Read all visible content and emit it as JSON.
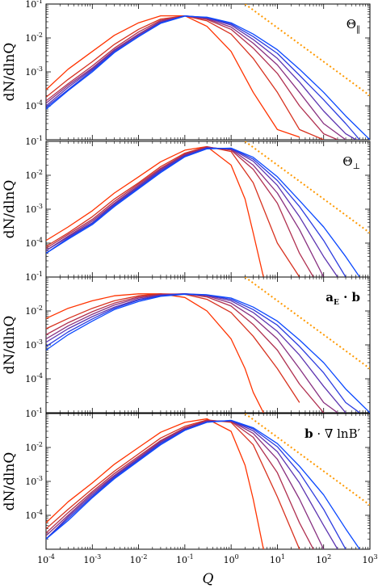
{
  "chart_data": {
    "type": "line",
    "xscale": "log",
    "yscale": "log",
    "xlim": [
      0.0001,
      1000
    ],
    "ylim": [
      1e-05,
      0.1
    ],
    "xlabel": "Q",
    "ylabel": "dN/dlnQ",
    "series_colors": [
      "#ff3300",
      "#d8321f",
      "#b03050",
      "#883080",
      "#5c34b0",
      "#2c3ce0",
      "#0a48ff"
    ],
    "guide_color": "#ff9900",
    "guide_line": {
      "x": [
        2,
        1000
      ],
      "y": [
        0.1,
        0.0002
      ]
    },
    "panels": [
      {
        "label": "Θ‖",
        "label_parts": [
          "Θ",
          "‖"
        ],
        "series": [
          {
            "x": [
              0.0001,
              0.0003,
              0.001,
              0.003,
              0.01,
              0.03,
              0.1,
              0.3,
              1,
              3,
              10,
              30
            ],
            "y": [
              0.0003,
              0.0012,
              0.004,
              0.012,
              0.028,
              0.045,
              0.045,
              0.022,
              0.004,
              0.00025,
              2e-05,
              1.2e-05
            ]
          },
          {
            "x": [
              0.0001,
              0.0003,
              0.001,
              0.003,
              0.01,
              0.03,
              0.1,
              0.3,
              1,
              3,
              10,
              30,
              100
            ],
            "y": [
              0.00018,
              0.0006,
              0.002,
              0.0065,
              0.018,
              0.036,
              0.045,
              0.032,
              0.013,
              0.0025,
              0.00025,
              2e-05,
              1e-05
            ]
          },
          {
            "x": [
              0.0001,
              0.0003,
              0.001,
              0.003,
              0.01,
              0.03,
              0.1,
              0.3,
              1,
              3,
              10,
              30,
              100,
              200
            ],
            "y": [
              0.00014,
              0.00045,
              0.0015,
              0.005,
              0.015,
              0.033,
              0.045,
              0.035,
              0.018,
              0.005,
              0.0009,
              0.0001,
              1.5e-05,
              1e-05
            ]
          },
          {
            "x": [
              0.0001,
              0.0003,
              0.001,
              0.003,
              0.01,
              0.03,
              0.1,
              0.3,
              1,
              3,
              10,
              30,
              100,
              300
            ],
            "y": [
              0.00012,
              0.0004,
              0.0013,
              0.0045,
              0.013,
              0.031,
              0.045,
              0.037,
              0.021,
              0.007,
              0.0016,
              0.00025,
              3e-05,
              1e-05
            ]
          },
          {
            "x": [
              0.0001,
              0.0003,
              0.001,
              0.003,
              0.01,
              0.03,
              0.1,
              0.3,
              1,
              3,
              10,
              30,
              100,
              300,
              500
            ],
            "y": [
              0.0001,
              0.00035,
              0.0012,
              0.0042,
              0.012,
              0.029,
              0.045,
              0.039,
              0.024,
              0.009,
              0.0025,
              0.0005,
              7e-05,
              1.5e-05,
              1e-05
            ]
          },
          {
            "x": [
              0.0001,
              0.0003,
              0.001,
              0.003,
              0.01,
              0.03,
              0.1,
              0.3,
              1,
              3,
              10,
              30,
              100,
              300,
              600
            ],
            "y": [
              9e-05,
              0.0003,
              0.0011,
              0.0039,
              0.011,
              0.028,
              0.045,
              0.04,
              0.026,
              0.011,
              0.0035,
              0.0008,
              0.00015,
              3e-05,
              1e-05
            ]
          },
          {
            "x": [
              0.0001,
              0.0003,
              0.001,
              0.003,
              0.01,
              0.03,
              0.1,
              0.3,
              1,
              3,
              10,
              30,
              100,
              300,
              1000
            ],
            "y": [
              8e-05,
              0.00028,
              0.001,
              0.0037,
              0.011,
              0.027,
              0.044,
              0.041,
              0.028,
              0.013,
              0.0045,
              0.0012,
              0.00025,
              5e-05,
              1e-05
            ]
          }
        ]
      },
      {
        "label": "Θ⊥",
        "label_parts": [
          "Θ",
          "⊥"
        ],
        "series": [
          {
            "x": [
              0.0001,
              0.0003,
              0.001,
              0.003,
              0.01,
              0.03,
              0.1,
              0.3,
              1,
              2,
              3,
              5
            ],
            "y": [
              0.00012,
              0.0003,
              0.0009,
              0.003,
              0.009,
              0.025,
              0.055,
              0.07,
              0.02,
              0.002,
              0.0002,
              1e-05
            ]
          },
          {
            "x": [
              0.0001,
              0.0003,
              0.001,
              0.003,
              0.01,
              0.03,
              0.1,
              0.3,
              1,
              3,
              10,
              30
            ],
            "y": [
              8e-05,
              0.0002,
              0.0006,
              0.002,
              0.006,
              0.018,
              0.045,
              0.07,
              0.05,
              0.006,
              0.0001,
              1e-05
            ]
          },
          {
            "x": [
              0.0001,
              0.0003,
              0.001,
              0.003,
              0.01,
              0.03,
              0.1,
              0.3,
              1,
              3,
              10,
              30,
              60
            ],
            "y": [
              7e-05,
              0.00018,
              0.0005,
              0.0017,
              0.0055,
              0.016,
              0.042,
              0.068,
              0.055,
              0.015,
              0.0015,
              5e-05,
              1e-05
            ]
          },
          {
            "x": [
              0.0001,
              0.0003,
              0.001,
              0.003,
              0.01,
              0.03,
              0.1,
              0.3,
              1,
              3,
              10,
              30,
              100
            ],
            "y": [
              6e-05,
              0.00016,
              0.00045,
              0.0015,
              0.005,
              0.015,
              0.04,
              0.066,
              0.058,
              0.02,
              0.003,
              0.00025,
              1e-05
            ]
          },
          {
            "x": [
              0.0001,
              0.0003,
              0.001,
              0.003,
              0.01,
              0.03,
              0.1,
              0.3,
              1,
              3,
              10,
              30,
              100,
              200
            ],
            "y": [
              6e-05,
              0.00015,
              0.0004,
              0.0014,
              0.0046,
              0.014,
              0.038,
              0.064,
              0.06,
              0.026,
              0.005,
              0.0006,
              4e-05,
              1e-05
            ]
          },
          {
            "x": [
              0.0001,
              0.0003,
              0.001,
              0.003,
              0.01,
              0.03,
              0.1,
              0.3,
              1,
              3,
              10,
              30,
              100,
              300
            ],
            "y": [
              5e-05,
              0.00014,
              0.00038,
              0.0013,
              0.0043,
              0.013,
              0.036,
              0.062,
              0.062,
              0.03,
              0.007,
              0.0012,
              0.00012,
              1e-05
            ]
          },
          {
            "x": [
              0.0001,
              0.0003,
              0.001,
              0.003,
              0.01,
              0.03,
              0.1,
              0.3,
              1,
              3,
              10,
              30,
              100,
              300,
              600
            ],
            "y": [
              5e-05,
              0.00013,
              0.00035,
              0.0012,
              0.004,
              0.012,
              0.035,
              0.06,
              0.063,
              0.034,
              0.009,
              0.0018,
              0.0003,
              4e-05,
              1e-05
            ]
          }
        ]
      },
      {
        "label": "aE · b",
        "label_parts": [
          "a",
          "E",
          " · b"
        ],
        "series": [
          {
            "x": [
              0.0001,
              0.0003,
              0.001,
              0.003,
              0.01,
              0.03,
              0.1,
              0.3,
              1,
              2,
              3,
              5
            ],
            "y": [
              0.006,
              0.012,
              0.02,
              0.028,
              0.032,
              0.032,
              0.025,
              0.01,
              0.0015,
              0.0002,
              4e-05,
              1e-05
            ]
          },
          {
            "x": [
              0.0001,
              0.0003,
              0.001,
              0.003,
              0.01,
              0.03,
              0.1,
              0.3,
              1,
              3,
              10,
              30
            ],
            "y": [
              0.003,
              0.006,
              0.012,
              0.02,
              0.028,
              0.032,
              0.031,
              0.022,
              0.009,
              0.0018,
              0.0002,
              2e-05
            ]
          },
          {
            "x": [
              0.0001,
              0.0003,
              0.001,
              0.003,
              0.01,
              0.03,
              0.1,
              0.3,
              1,
              3,
              10,
              30,
              100
            ],
            "y": [
              0.002,
              0.0045,
              0.0095,
              0.017,
              0.026,
              0.031,
              0.032,
              0.026,
              0.014,
              0.004,
              0.0007,
              7e-05,
              1e-05
            ]
          },
          {
            "x": [
              0.0001,
              0.0003,
              0.001,
              0.003,
              0.01,
              0.03,
              0.1,
              0.3,
              1,
              3,
              10,
              30,
              100,
              200
            ],
            "y": [
              0.0015,
              0.0036,
              0.008,
              0.015,
              0.024,
              0.03,
              0.032,
              0.028,
              0.017,
              0.0065,
              0.0015,
              0.0002,
              2e-05,
              1e-05
            ]
          },
          {
            "x": [
              0.0001,
              0.0003,
              0.001,
              0.003,
              0.01,
              0.03,
              0.1,
              0.3,
              1,
              3,
              10,
              30,
              100,
              300
            ],
            "y": [
              0.0012,
              0.003,
              0.0068,
              0.013,
              0.022,
              0.029,
              0.032,
              0.029,
              0.02,
              0.009,
              0.0025,
              0.0005,
              6e-05,
              1e-05
            ]
          },
          {
            "x": [
              0.0001,
              0.0003,
              0.001,
              0.003,
              0.01,
              0.03,
              0.1,
              0.3,
              1,
              3,
              10,
              30,
              100,
              300,
              600
            ],
            "y": [
              0.0009,
              0.0024,
              0.0058,
              0.012,
              0.021,
              0.028,
              0.032,
              0.03,
              0.022,
              0.011,
              0.0038,
              0.0009,
              0.00015,
              2e-05,
              1e-05
            ]
          },
          {
            "x": [
              0.0001,
              0.0003,
              0.001,
              0.003,
              0.01,
              0.03,
              0.1,
              0.3,
              1,
              3,
              10,
              30,
              100,
              300,
              1000
            ],
            "y": [
              0.0007,
              0.002,
              0.005,
              0.011,
              0.019,
              0.027,
              0.031,
              0.03,
              0.024,
              0.013,
              0.005,
              0.0014,
              0.0003,
              5e-05,
              1e-05
            ]
          }
        ]
      },
      {
        "label": "b · ∇ lnB′",
        "label_parts": [
          "b",
          " · ∇ lnB′"
        ],
        "series": [
          {
            "x": [
              0.0001,
              0.0003,
              0.001,
              0.003,
              0.01,
              0.03,
              0.1,
              0.3,
              1,
              2,
              3,
              5
            ],
            "y": [
              6e-05,
              0.00025,
              0.0009,
              0.0032,
              0.01,
              0.028,
              0.055,
              0.07,
              0.03,
              0.003,
              0.0003,
              1e-05
            ]
          },
          {
            "x": [
              0.0001,
              0.0003,
              0.001,
              0.003,
              0.01,
              0.03,
              0.1,
              0.3,
              1,
              3,
              10,
              30
            ],
            "y": [
              4e-05,
              0.00015,
              0.0006,
              0.002,
              0.0065,
              0.019,
              0.042,
              0.065,
              0.055,
              0.012,
              0.00035,
              1e-05
            ]
          },
          {
            "x": [
              0.0001,
              0.0003,
              0.001,
              0.003,
              0.01,
              0.03,
              0.1,
              0.3,
              1,
              3,
              10,
              30,
              60
            ],
            "y": [
              3e-05,
              0.00012,
              0.0005,
              0.0017,
              0.0055,
              0.016,
              0.038,
              0.062,
              0.058,
              0.02,
              0.0018,
              6e-05,
              1e-05
            ]
          },
          {
            "x": [
              0.0001,
              0.0003,
              0.001,
              0.003,
              0.01,
              0.03,
              0.1,
              0.3,
              1,
              3,
              10,
              30,
              100
            ],
            "y": [
              2.5e-05,
              0.0001,
              0.00045,
              0.0015,
              0.005,
              0.015,
              0.036,
              0.06,
              0.06,
              0.026,
              0.0045,
              0.0003,
              1e-05
            ]
          },
          {
            "x": [
              0.0001,
              0.0003,
              0.001,
              0.003,
              0.01,
              0.03,
              0.1,
              0.3,
              1,
              3,
              10,
              30,
              100,
              200
            ],
            "y": [
              2e-05,
              9e-05,
              0.0004,
              0.0014,
              0.0046,
              0.014,
              0.034,
              0.058,
              0.061,
              0.031,
              0.0075,
              0.0009,
              5e-05,
              1e-05
            ]
          },
          {
            "x": [
              0.0001,
              0.0003,
              0.001,
              0.003,
              0.01,
              0.03,
              0.1,
              0.3,
              1,
              3,
              10,
              30,
              100,
              300
            ],
            "y": [
              2e-05,
              8e-05,
              0.00036,
              0.0013,
              0.0043,
              0.013,
              0.033,
              0.056,
              0.062,
              0.035,
              0.0105,
              0.0018,
              0.00015,
              1e-05
            ]
          },
          {
            "x": [
              0.0001,
              0.0003,
              0.001,
              0.003,
              0.01,
              0.03,
              0.1,
              0.3,
              1,
              3,
              10,
              30,
              100,
              300,
              600
            ],
            "y": [
              2e-05,
              7e-05,
              0.00033,
              0.0012,
              0.004,
              0.012,
              0.032,
              0.055,
              0.063,
              0.038,
              0.013,
              0.0028,
              0.0004,
              4e-05,
              1e-05
            ]
          }
        ]
      }
    ]
  }
}
